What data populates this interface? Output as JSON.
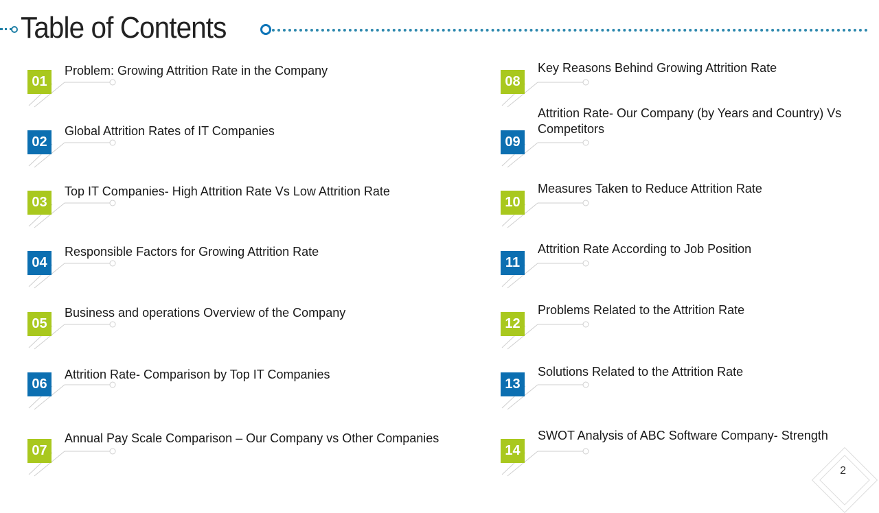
{
  "header": {
    "title": "Table of Contents"
  },
  "items": [
    {
      "num": "01",
      "color": "green",
      "label": "Problem: Growing Attrition Rate in the Company"
    },
    {
      "num": "02",
      "color": "blue",
      "label": "Global Attrition Rates of IT Companies"
    },
    {
      "num": "03",
      "color": "green",
      "label": "Top IT Companies- High Attrition Rate Vs Low Attrition Rate"
    },
    {
      "num": "04",
      "color": "blue",
      "label": "Responsible Factors for Growing Attrition Rate"
    },
    {
      "num": "05",
      "color": "green",
      "label": "Business and operations Overview of the Company"
    },
    {
      "num": "06",
      "color": "blue",
      "label": "Attrition Rate- Comparison by Top IT Companies"
    },
    {
      "num": "07",
      "color": "green",
      "label": "Annual Pay Scale Comparison – Our Company vs Other Companies"
    },
    {
      "num": "08",
      "color": "green",
      "label": "Key Reasons Behind Growing Attrition Rate"
    },
    {
      "num": "09",
      "color": "blue",
      "label": "Attrition Rate- Our Company (by Years and Country) Vs Competitors"
    },
    {
      "num": "10",
      "color": "green",
      "label": "Measures Taken to Reduce Attrition Rate"
    },
    {
      "num": "11",
      "color": "blue",
      "label": "Attrition Rate According to Job Position"
    },
    {
      "num": "12",
      "color": "green",
      "label": "Problems Related to the Attrition Rate"
    },
    {
      "num": "13",
      "color": "blue",
      "label": "Solutions Related to the Attrition Rate"
    },
    {
      "num": "14",
      "color": "green",
      "label": "SWOT Analysis of ABC Software Company- Strength"
    }
  ],
  "colors": {
    "green": "#a9c81e",
    "blue": "#0c6fb1",
    "accent_line": "#2b87ad"
  },
  "footer": {
    "page_number": "2"
  }
}
